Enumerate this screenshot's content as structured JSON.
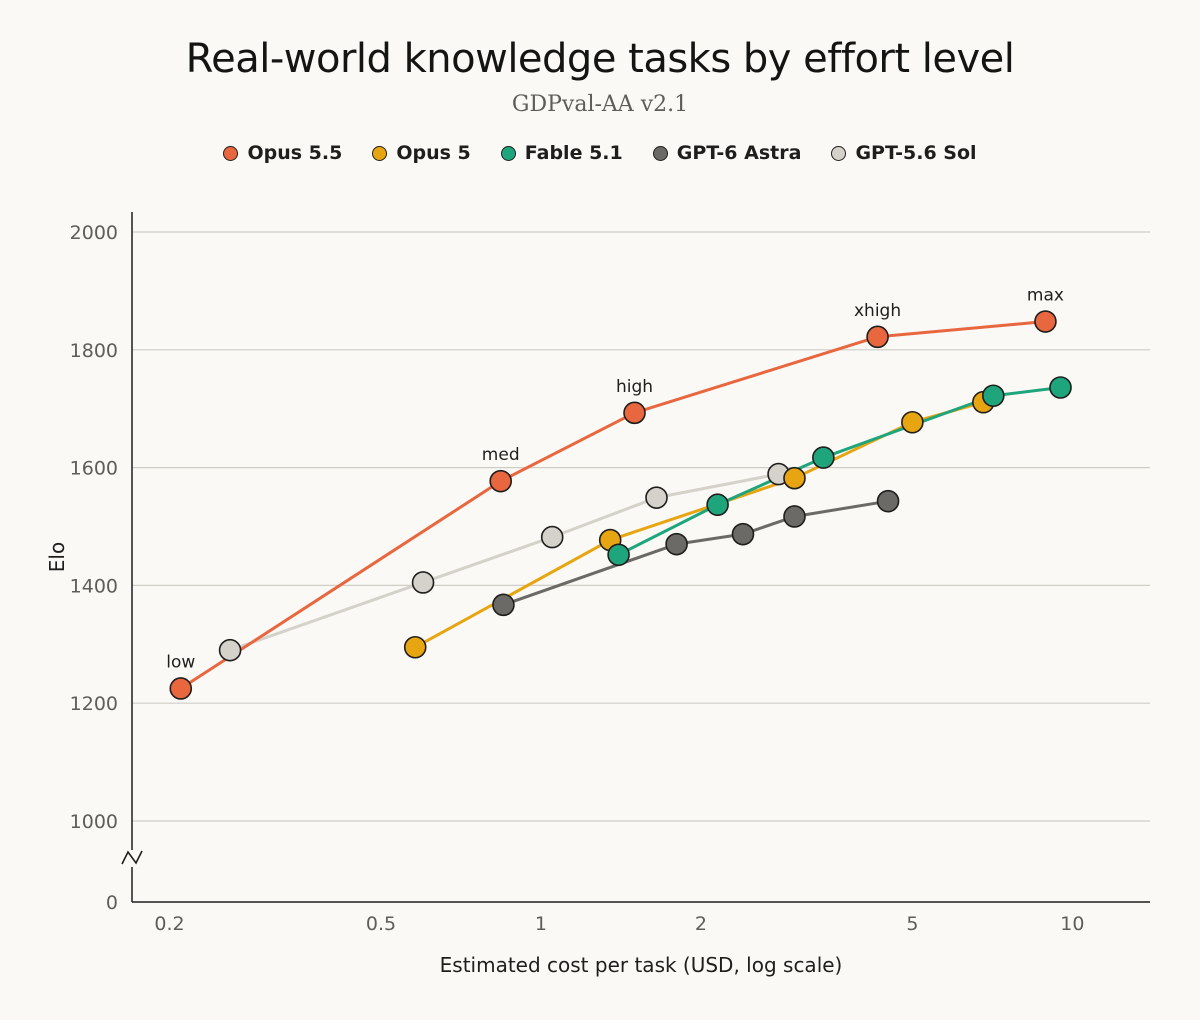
{
  "chart_data": {
    "type": "line",
    "title": "Real-world knowledge tasks by effort level",
    "subtitle": "GDPval-AA v2.1",
    "xlabel": "Estimated cost per task (USD, log scale)",
    "ylabel": "Elo",
    "x_scale": "log",
    "xlim": [
      0.17,
      14
    ],
    "ylim": [
      1000,
      2000
    ],
    "y_axis_break": true,
    "x_ticks": [
      {
        "value": 0.2,
        "label": "0.2"
      },
      {
        "value": 0.5,
        "label": "0.5"
      },
      {
        "value": 1,
        "label": "1"
      },
      {
        "value": 2,
        "label": "2"
      },
      {
        "value": 5,
        "label": "5"
      },
      {
        "value": 10,
        "label": "10"
      }
    ],
    "y_ticks": [
      {
        "value": 0,
        "label": "0"
      },
      {
        "value": 1000,
        "label": "1000"
      },
      {
        "value": 1200,
        "label": "1200"
      },
      {
        "value": 1400,
        "label": "1400"
      },
      {
        "value": 1600,
        "label": "1600"
      },
      {
        "value": 1800,
        "label": "1800"
      },
      {
        "value": 2000,
        "label": "2000"
      }
    ],
    "grid": true,
    "legend_position": "top",
    "series": [
      {
        "name": "Opus 5.5",
        "color": "#e8673f",
        "x": [
          0.21,
          0.84,
          1.5,
          4.3,
          8.9
        ],
        "y": [
          1225,
          1577,
          1693,
          1822,
          1848
        ],
        "point_labels": [
          "low",
          "med",
          "high",
          "xhigh",
          "max"
        ]
      },
      {
        "name": "Opus 5",
        "color": "#e8a512",
        "x": [
          0.58,
          1.35,
          3.0,
          5.0,
          6.8
        ],
        "y": [
          1295,
          1477,
          1582,
          1677,
          1711
        ]
      },
      {
        "name": "Fable 5.1",
        "color": "#1fa57c",
        "x": [
          1.4,
          2.15,
          3.4,
          7.1,
          9.5
        ],
        "y": [
          1452,
          1537,
          1617,
          1722,
          1736
        ]
      },
      {
        "name": "GPT-6 Astra",
        "color": "#6b6a66",
        "x": [
          0.85,
          1.8,
          2.4,
          3.0,
          4.5
        ],
        "y": [
          1367,
          1470,
          1487,
          1517,
          1543
        ]
      },
      {
        "name": "GPT-5.6 Sol",
        "color": "#d4d2ca",
        "x": [
          0.26,
          0.6,
          1.05,
          1.65,
          2.8
        ],
        "y": [
          1290,
          1405,
          1482,
          1549,
          1589
        ]
      }
    ]
  }
}
